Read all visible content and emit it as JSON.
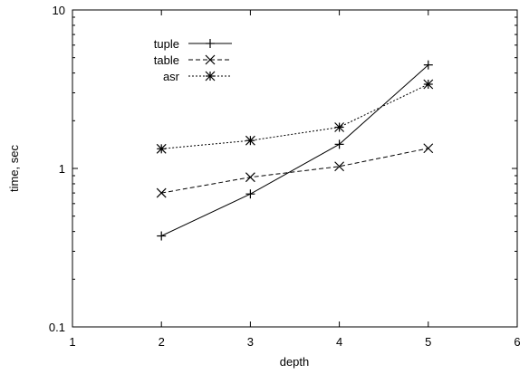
{
  "chart_data": {
    "type": "line",
    "xlabel": "depth",
    "ylabel": "time, sec",
    "xlim": [
      1,
      6
    ],
    "ylim": [
      0.1,
      10
    ],
    "yscale": "log",
    "xticks": [
      1,
      2,
      3,
      4,
      5,
      6
    ],
    "yticks": [
      0.1,
      1,
      10
    ],
    "xtick_labels": [
      "1",
      "2",
      "3",
      "4",
      "5",
      "6"
    ],
    "ytick_labels": [
      "0.1",
      "1",
      "10"
    ],
    "legend_position": "top-left",
    "series": [
      {
        "name": "tuple",
        "marker": "plus",
        "linestyle": "solid",
        "x": [
          2,
          3,
          4,
          5
        ],
        "y": [
          0.375,
          0.69,
          1.42,
          4.5
        ]
      },
      {
        "name": "table",
        "marker": "cross",
        "linestyle": "dashed",
        "x": [
          2,
          3,
          4,
          5
        ],
        "y": [
          0.7,
          0.88,
          1.03,
          1.34
        ]
      },
      {
        "name": "asr",
        "marker": "star",
        "linestyle": "dotted",
        "x": [
          2,
          3,
          4,
          5
        ],
        "y": [
          1.33,
          1.5,
          1.82,
          3.4
        ]
      }
    ]
  }
}
